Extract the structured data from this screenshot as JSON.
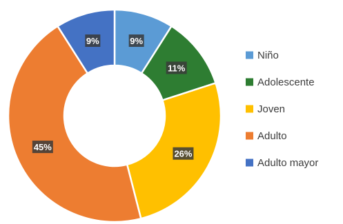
{
  "chart_data": {
    "type": "pie",
    "variant": "donut",
    "title": "",
    "legend_position": "right",
    "categories": [
      "Niño",
      "Adolescente",
      "Joven",
      "Adulto",
      "Adulto mayor"
    ],
    "values": [
      9,
      11,
      26,
      45,
      9
    ],
    "data_labels": [
      "9%",
      "11%",
      "26%",
      "45%",
      "9%"
    ],
    "colors": [
      "#5b9bd5",
      "#2e7d32",
      "#ffc000",
      "#ed7d31",
      "#4472c4"
    ]
  }
}
